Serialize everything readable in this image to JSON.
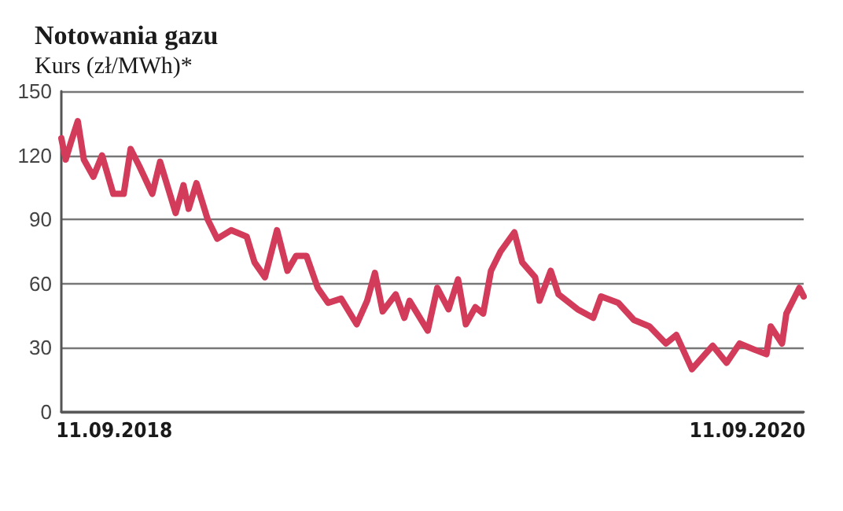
{
  "chart_data": {
    "type": "line",
    "title": "Notowania gazu",
    "subtitle": "Kurs (zł/MWh)*",
    "x": [
      "2018-07-12",
      "2018-07-17",
      "2018-07-23",
      "2018-07-31",
      "2018-08-07",
      "2018-08-18",
      "2018-08-28",
      "2018-09-10",
      "2018-09-22",
      "2018-09-30",
      "2018-10-10",
      "2018-10-25",
      "2018-11-03",
      "2018-11-21",
      "2018-11-30",
      "2018-12-06",
      "2018-12-15",
      "2018-12-28",
      "2019-01-08",
      "2019-01-24",
      "2019-02-11",
      "2019-02-20",
      "2019-03-04",
      "2019-03-18",
      "2019-03-30",
      "2019-04-09",
      "2019-04-21",
      "2019-05-04",
      "2019-05-16",
      "2019-05-31",
      "2019-06-18",
      "2019-06-30",
      "2019-07-09",
      "2019-07-18",
      "2019-08-02",
      "2019-08-12",
      "2019-08-18",
      "2019-09-08",
      "2019-09-19",
      "2019-10-02",
      "2019-10-13",
      "2019-10-22",
      "2019-11-02",
      "2019-11-11",
      "2019-11-20",
      "2019-12-01",
      "2019-12-17",
      "2019-12-26",
      "2020-01-10",
      "2020-01-15",
      "2020-01-28",
      "2020-02-06",
      "2020-02-28",
      "2020-03-17",
      "2020-03-26",
      "2020-04-15",
      "2020-05-03",
      "2020-05-21",
      "2020-06-09",
      "2020-06-21",
      "2020-07-09",
      "2020-07-22",
      "2020-08-02",
      "2020-08-18",
      "2020-09-02",
      "2020-09-20",
      "2020-10-03",
      "2020-10-08",
      "2020-10-21",
      "2020-10-26",
      "2020-11-10",
      "2020-11-15"
    ],
    "series": [
      {
        "color": "#d23c5a",
        "values": [
          128,
          118,
          126,
          136,
          118,
          110,
          120,
          102,
          102,
          123,
          115,
          102,
          117,
          93,
          106,
          95,
          107,
          90,
          81,
          85,
          82,
          70,
          63,
          85,
          66,
          73,
          73,
          58,
          51,
          53,
          41,
          52,
          65,
          47,
          55,
          44,
          52,
          38,
          58,
          48,
          62,
          41,
          49,
          46,
          66,
          75,
          84,
          70,
          63,
          52,
          66,
          55,
          48,
          44,
          54,
          51,
          43,
          40,
          32,
          36,
          20,
          26,
          31,
          23,
          32,
          29,
          27,
          40,
          32,
          46,
          58,
          54
        ]
      }
    ],
    "xlim": [
      "2018-07-12",
      "2020-11-15"
    ],
    "xticks": [
      {
        "value": "2018-09-11",
        "label": "11.09.2018"
      },
      {
        "value": "2020-09-11",
        "label": "11.09.2020"
      }
    ],
    "ylim": [
      0,
      150
    ],
    "yticks": [
      0,
      30,
      60,
      90,
      120,
      150
    ],
    "grid": "y",
    "marker": "none",
    "line_style": "solid"
  }
}
